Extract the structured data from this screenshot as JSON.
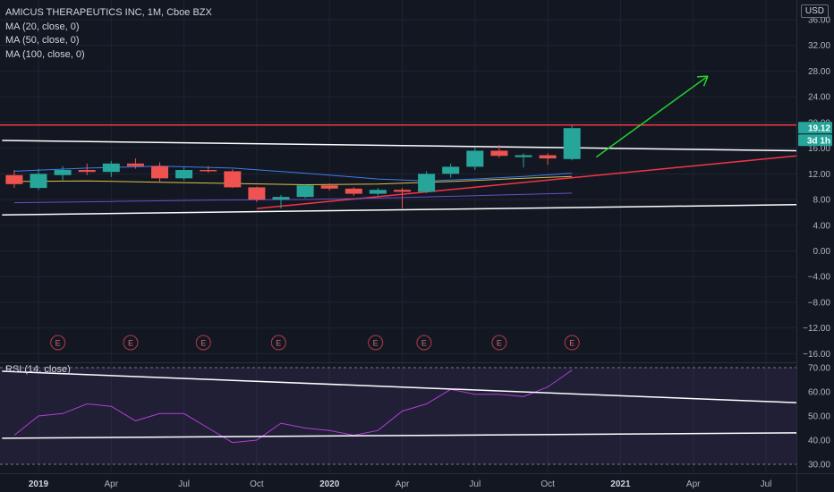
{
  "header": {
    "symbol": "AMICUS THERAPEUTICS INC, 1M, Cboe BZX",
    "indicators": [
      "MA (20, close, 0)",
      "MA (50, close, 0)",
      "MA (100, close, 0)"
    ],
    "currency": "USD"
  },
  "chart_data": {
    "type": "candlestick",
    "interval": "1M",
    "price_axis": {
      "range": [
        -16,
        38
      ],
      "ticks": [
        36,
        32,
        28,
        24,
        20,
        16,
        12,
        8,
        4,
        0,
        -4,
        -8,
        -12,
        -16
      ],
      "tick_labels": [
        "36.00",
        "32.00",
        "28.00",
        "24.00",
        "20.00",
        "16.00",
        "12.00",
        "8.00",
        "4.00",
        "0.00",
        "−4.00",
        "−8.00",
        "−12.00",
        "−16.00"
      ]
    },
    "time_axis": {
      "labels": [
        "2019",
        "Apr",
        "Jul",
        "Oct",
        "2020",
        "Apr",
        "Jul",
        "Oct",
        "2021",
        "Apr",
        "Jul"
      ],
      "label_months": [
        0,
        3,
        6,
        9,
        12,
        15,
        18,
        21,
        24,
        27,
        30
      ]
    },
    "candles": [
      {
        "m": -1,
        "o": 11.8,
        "h": 12.6,
        "l": 9.8,
        "c": 10.4
      },
      {
        "m": 0,
        "o": 9.8,
        "h": 12.8,
        "l": 9.5,
        "c": 12.0
      },
      {
        "m": 1,
        "o": 11.8,
        "h": 13.2,
        "l": 11.0,
        "c": 12.6
      },
      {
        "m": 2,
        "o": 12.6,
        "h": 13.6,
        "l": 11.8,
        "c": 12.3
      },
      {
        "m": 3,
        "o": 12.3,
        "h": 14.0,
        "l": 11.5,
        "c": 13.6
      },
      {
        "m": 4,
        "o": 13.6,
        "h": 14.4,
        "l": 12.8,
        "c": 13.2
      },
      {
        "m": 5,
        "o": 13.2,
        "h": 13.8,
        "l": 10.6,
        "c": 11.3
      },
      {
        "m": 6,
        "o": 11.3,
        "h": 13.0,
        "l": 11.0,
        "c": 12.6
      },
      {
        "m": 7,
        "o": 12.6,
        "h": 13.2,
        "l": 12.2,
        "c": 12.4
      },
      {
        "m": 8,
        "o": 12.4,
        "h": 12.7,
        "l": 9.8,
        "c": 9.9
      },
      {
        "m": 9,
        "o": 9.9,
        "h": 10.0,
        "l": 7.6,
        "c": 8.0
      },
      {
        "m": 10,
        "o": 8.0,
        "h": 8.7,
        "l": 6.6,
        "c": 8.4
      },
      {
        "m": 11,
        "o": 8.4,
        "h": 10.4,
        "l": 8.2,
        "c": 10.2
      },
      {
        "m": 12,
        "o": 10.2,
        "h": 10.5,
        "l": 9.4,
        "c": 9.7
      },
      {
        "m": 13,
        "o": 9.7,
        "h": 9.9,
        "l": 8.6,
        "c": 8.9
      },
      {
        "m": 14,
        "o": 8.9,
        "h": 9.8,
        "l": 8.6,
        "c": 9.5
      },
      {
        "m": 15,
        "o": 9.5,
        "h": 9.8,
        "l": 6.6,
        "c": 9.2
      },
      {
        "m": 16,
        "o": 9.2,
        "h": 12.4,
        "l": 9.0,
        "c": 12.0
      },
      {
        "m": 17,
        "o": 12.0,
        "h": 13.6,
        "l": 11.4,
        "c": 13.1
      },
      {
        "m": 18,
        "o": 13.1,
        "h": 16.2,
        "l": 12.6,
        "c": 15.6
      },
      {
        "m": 19,
        "o": 15.6,
        "h": 16.5,
        "l": 14.5,
        "c": 14.8
      },
      {
        "m": 20,
        "o": 14.6,
        "h": 15.2,
        "l": 13.0,
        "c": 14.9
      },
      {
        "m": 21,
        "o": 14.9,
        "h": 15.2,
        "l": 13.4,
        "c": 14.4
      },
      {
        "m": 22,
        "o": 14.3,
        "h": 19.5,
        "l": 14.1,
        "c": 19.12
      }
    ],
    "moving_averages": [
      {
        "name": "MA (20, close, 0)",
        "color": "#3d7ee8",
        "points": [
          [
            -1,
            12.4
          ],
          [
            2,
            12.9
          ],
          [
            5,
            13.2
          ],
          [
            8,
            12.9
          ],
          [
            11,
            12.1
          ],
          [
            14,
            11.2
          ],
          [
            16,
            10.9
          ],
          [
            18,
            11.2
          ],
          [
            20,
            11.6
          ],
          [
            22,
            12.1
          ]
        ]
      },
      {
        "name": "MA (50, close, 0)",
        "color": "#d8c54a",
        "points": [
          [
            -1,
            10.8
          ],
          [
            2,
            10.9
          ],
          [
            5,
            10.7
          ],
          [
            8,
            10.5
          ],
          [
            11,
            10.3
          ],
          [
            14,
            10.4
          ],
          [
            17,
            10.8
          ],
          [
            20,
            11.3
          ],
          [
            22,
            11.6
          ]
        ]
      },
      {
        "name": "MA (100, close, 0)",
        "color": "#6a4fc4",
        "points": [
          [
            -1,
            7.5
          ],
          [
            3,
            7.7
          ],
          [
            7,
            7.9
          ],
          [
            11,
            8.0
          ],
          [
            15,
            8.3
          ],
          [
            19,
            8.7
          ],
          [
            22,
            9.0
          ]
        ]
      }
    ],
    "drawings": [
      {
        "kind": "horizontal-resistance",
        "color": "#f23645",
        "price": 19.6
      },
      {
        "kind": "upper-channel",
        "color": "#ffffff",
        "from": [
          -1.5,
          17.2
        ],
        "to": [
          31.5,
          15.6
        ]
      },
      {
        "kind": "lower-channel",
        "color": "#ffffff",
        "from": [
          -1.5,
          5.6
        ],
        "to": [
          31.5,
          7.2
        ]
      },
      {
        "kind": "rising-support",
        "color": "#f23645",
        "from": [
          9,
          6.6
        ],
        "to": [
          31.5,
          14.8
        ]
      },
      {
        "kind": "projection-arrow",
        "color": "#22d12e",
        "from": [
          23,
          14.6
        ],
        "to": [
          27.6,
          27.2
        ]
      }
    ],
    "earnings_months": [
      0.8,
      3.8,
      6.8,
      9.9,
      13.9,
      15.9,
      19.0,
      22.0
    ],
    "earnings_label": "E",
    "last_price": "19.12",
    "countdown": "3d 1h",
    "rsi": {
      "label": "RSI (14, close)",
      "range": [
        28,
        72
      ],
      "ticks": [
        70,
        60,
        50,
        40,
        30
      ],
      "tick_labels": [
        "70.00",
        "60.00",
        "50.00",
        "40.00",
        "30.00"
      ],
      "band": [
        30,
        70
      ],
      "values": [
        [
          -1,
          42
        ],
        [
          0,
          50
        ],
        [
          1,
          51
        ],
        [
          2,
          55
        ],
        [
          3,
          54
        ],
        [
          4,
          48
        ],
        [
          5,
          51
        ],
        [
          6,
          51
        ],
        [
          7,
          45
        ],
        [
          8,
          39
        ],
        [
          9,
          40
        ],
        [
          10,
          47
        ],
        [
          11,
          45
        ],
        [
          12,
          44
        ],
        [
          13,
          42
        ],
        [
          14,
          44
        ],
        [
          15,
          52
        ],
        [
          16,
          55
        ],
        [
          17,
          61
        ],
        [
          18,
          59
        ],
        [
          19,
          59
        ],
        [
          20,
          58
        ],
        [
          21,
          62
        ],
        [
          22,
          69
        ]
      ],
      "trendlines": [
        {
          "color": "#ffffff",
          "from": [
            -1.5,
            68.5
          ],
          "to": [
            31.5,
            55.5
          ]
        },
        {
          "color": "#ffffff",
          "from": [
            -1.5,
            40.8
          ],
          "to": [
            31.5,
            43.0
          ]
        }
      ]
    }
  }
}
